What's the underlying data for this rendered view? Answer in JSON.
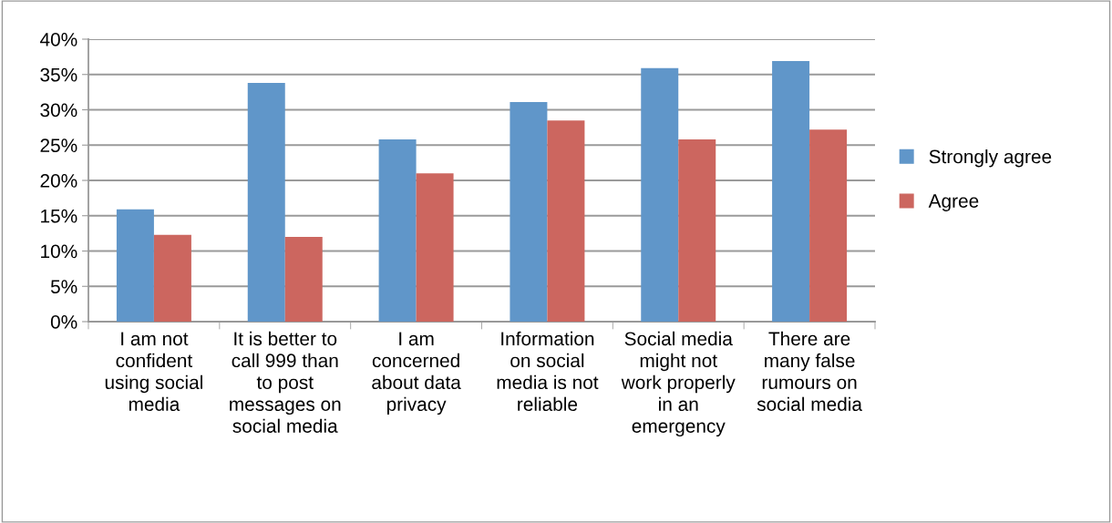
{
  "chart_data": {
    "type": "bar",
    "categories": [
      "I am not confident using social media",
      "It is better to call 999 than to post messages on social media",
      "I am concerned about data privacy",
      "Information on social media is not reliable",
      "Social media might not work properly in an emergency",
      "There are many false rumours on social media"
    ],
    "series": [
      {
        "name": "Strongly agree",
        "color": "#6096c9",
        "values": [
          15.9,
          33.8,
          25.8,
          31.1,
          35.9,
          36.9
        ]
      },
      {
        "name": "Agree",
        "color": "#cc665f",
        "values": [
          12.3,
          12.0,
          21.0,
          28.5,
          25.8,
          27.2
        ]
      }
    ],
    "ylim": [
      0,
      40
    ],
    "yticks": [
      {
        "value": 0,
        "label": "0%"
      },
      {
        "value": 5,
        "label": "5%"
      },
      {
        "value": 10,
        "label": "10%"
      },
      {
        "value": 15,
        "label": "15%"
      },
      {
        "value": 20,
        "label": "20%"
      },
      {
        "value": 25,
        "label": "25%"
      },
      {
        "value": 30,
        "label": "30%"
      },
      {
        "value": 35,
        "label": "35%"
      },
      {
        "value": 40,
        "label": "40%"
      }
    ],
    "grid": "y",
    "legend": "right"
  }
}
